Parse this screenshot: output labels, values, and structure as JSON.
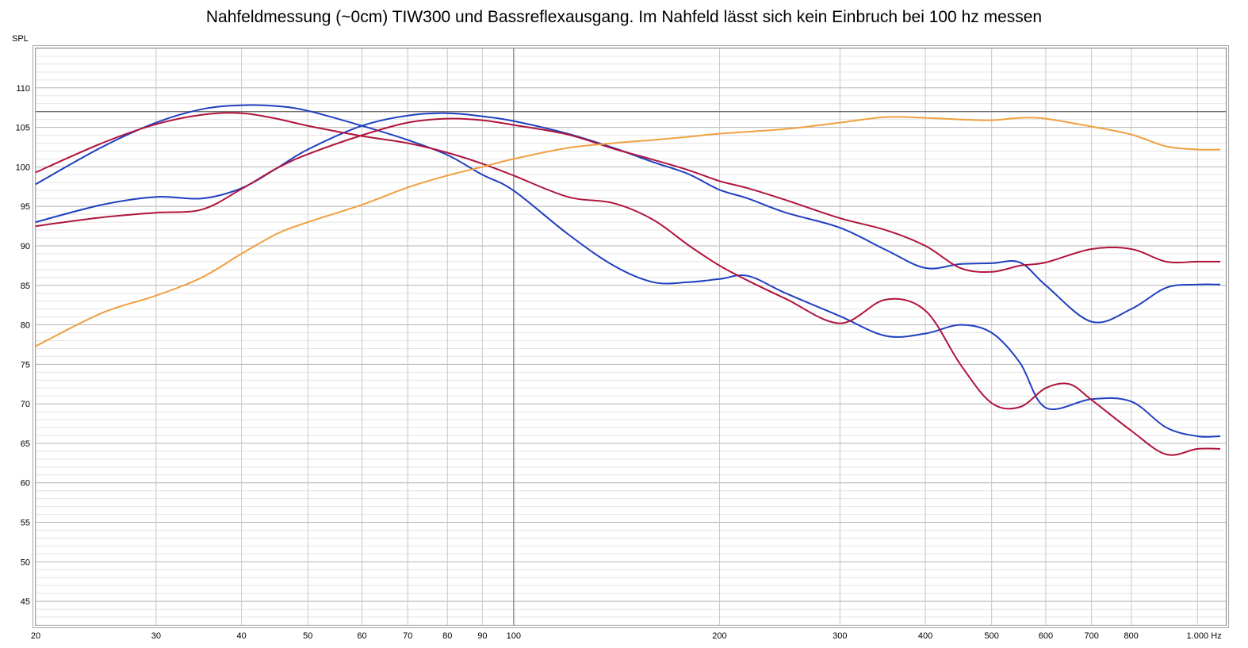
{
  "chart_data": {
    "type": "line",
    "title": "Nahfeldmessung (~0cm) TIW300 und Bassreflexausgang. Im Nahfeld lässt sich kein Einbruch bei 100 hz messen",
    "ylabel": "SPL",
    "xunit": "Hz",
    "xscale": "log",
    "xlim": [
      20,
      1100
    ],
    "ylim": [
      42,
      115
    ],
    "x_ticks": [
      {
        "value": 20,
        "label": "20"
      },
      {
        "value": 30,
        "label": "30"
      },
      {
        "value": 40,
        "label": "40"
      },
      {
        "value": 50,
        "label": "50"
      },
      {
        "value": 60,
        "label": "60"
      },
      {
        "value": 70,
        "label": "70"
      },
      {
        "value": 80,
        "label": "80"
      },
      {
        "value": 90,
        "label": "90"
      },
      {
        "value": 100,
        "label": "100"
      },
      {
        "value": 200,
        "label": "200"
      },
      {
        "value": 300,
        "label": "300"
      },
      {
        "value": 400,
        "label": "400"
      },
      {
        "value": 500,
        "label": "500"
      },
      {
        "value": 600,
        "label": "600"
      },
      {
        "value": 700,
        "label": "700"
      },
      {
        "value": 800,
        "label": "800"
      },
      {
        "value": 1000,
        "label": "1.000"
      }
    ],
    "y_ticks": [
      45,
      50,
      55,
      60,
      65,
      70,
      75,
      80,
      85,
      90,
      95,
      100,
      105,
      110
    ],
    "reference_line": 107,
    "grid": true,
    "series": [
      {
        "color": "#1f3fbf",
        "x": [
          20,
          25,
          30,
          35,
          40,
          45,
          50,
          60,
          70,
          80,
          90,
          100,
          120,
          140,
          160,
          180,
          200,
          220,
          250,
          300,
          350,
          400,
          450,
          500,
          550,
          600,
          700,
          800,
          900,
          1000,
          1080
        ],
        "y": [
          97.8,
          102.5,
          105.6,
          107.3,
          107.8,
          107.7,
          107.1,
          105.2,
          103.4,
          101.5,
          99.0,
          97.0,
          91.5,
          87.5,
          85.4,
          85.4,
          85.8,
          86.2,
          84.0,
          81.1,
          78.6,
          78.9,
          80.0,
          79.0,
          75.2,
          69.5,
          70.6,
          70.3,
          67.0,
          65.9,
          65.9
        ]
      },
      {
        "color": "#1f3fbf",
        "x": [
          20,
          25,
          30,
          35,
          40,
          45,
          50,
          60,
          70,
          80,
          90,
          100,
          120,
          140,
          160,
          180,
          200,
          220,
          250,
          300,
          350,
          400,
          450,
          500,
          550,
          600,
          700,
          800,
          900,
          1000,
          1080
        ],
        "y": [
          93.0,
          95.2,
          96.2,
          96.0,
          97.3,
          99.8,
          102.2,
          105.2,
          106.5,
          106.8,
          106.4,
          105.8,
          104.2,
          102.4,
          100.6,
          99.1,
          97.1,
          96.0,
          94.2,
          92.3,
          89.5,
          87.2,
          87.7,
          87.8,
          87.9,
          85.0,
          80.4,
          82.0,
          84.7,
          85.1,
          85.1
        ]
      },
      {
        "color": "#b0143c",
        "x": [
          20,
          25,
          30,
          35,
          40,
          45,
          50,
          60,
          70,
          80,
          90,
          100,
          120,
          140,
          160,
          180,
          200,
          220,
          250,
          300,
          350,
          400,
          450,
          500,
          550,
          600,
          650,
          700,
          800,
          900,
          1000,
          1080
        ],
        "y": [
          99.3,
          103.0,
          105.4,
          106.6,
          106.8,
          106.1,
          105.2,
          103.9,
          103.0,
          101.8,
          100.4,
          98.9,
          96.2,
          95.4,
          93.3,
          90.1,
          87.5,
          85.6,
          83.3,
          80.2,
          83.2,
          81.8,
          75.0,
          70.1,
          69.6,
          72.0,
          72.5,
          70.5,
          66.6,
          63.6,
          64.3,
          64.3
        ]
      },
      {
        "color": "#b0143c",
        "x": [
          20,
          25,
          30,
          35,
          40,
          45,
          50,
          60,
          70,
          80,
          90,
          100,
          120,
          140,
          160,
          180,
          200,
          220,
          250,
          300,
          350,
          400,
          450,
          500,
          550,
          600,
          700,
          800,
          900,
          1000,
          1080
        ],
        "y": [
          92.5,
          93.6,
          94.2,
          94.6,
          97.2,
          99.8,
          101.6,
          104.0,
          105.6,
          106.1,
          105.9,
          105.3,
          104.1,
          102.3,
          100.9,
          99.6,
          98.2,
          97.3,
          95.8,
          93.5,
          92.0,
          90.0,
          87.2,
          86.7,
          87.5,
          87.9,
          89.6,
          89.6,
          88.0,
          88.0,
          88.0
        ]
      },
      {
        "color": "#f0a040",
        "x": [
          20,
          25,
          30,
          35,
          40,
          45,
          50,
          60,
          70,
          80,
          90,
          100,
          120,
          140,
          160,
          180,
          200,
          250,
          300,
          350,
          400,
          450,
          500,
          550,
          600,
          700,
          800,
          900,
          1000,
          1080
        ],
        "y": [
          77.3,
          81.5,
          83.7,
          86.0,
          89.0,
          91.5,
          93.0,
          95.2,
          97.4,
          98.9,
          100.0,
          101.0,
          102.4,
          103.0,
          103.4,
          103.8,
          104.2,
          104.8,
          105.6,
          106.3,
          106.2,
          106.0,
          105.9,
          106.2,
          106.1,
          105.1,
          104.1,
          102.6,
          102.2,
          102.2
        ]
      }
    ]
  }
}
